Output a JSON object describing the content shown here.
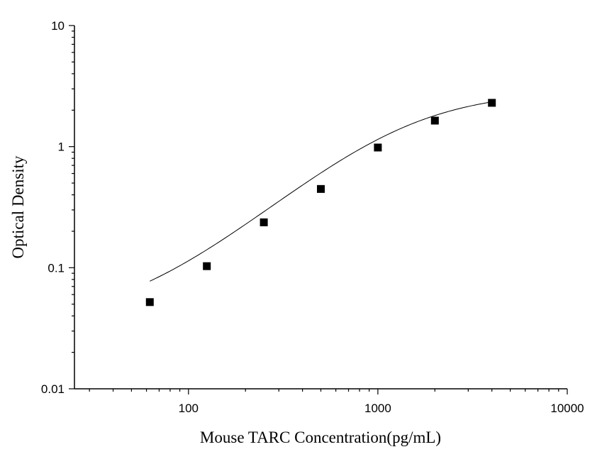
{
  "chart_data": {
    "type": "scatter",
    "title": "",
    "xlabel": "Mouse TARC Concentration(pg/mL)",
    "ylabel": "Optical Density",
    "x_scale": "log",
    "y_scale": "log",
    "xlim": [
      25,
      10000
    ],
    "ylim": [
      0.01,
      10
    ],
    "x_ticks": [
      {
        "value": 100,
        "label": "100"
      },
      {
        "value": 1000,
        "label": "1000"
      },
      {
        "value": 10000,
        "label": "10000"
      }
    ],
    "y_ticks": [
      {
        "value": 0.01,
        "label": "0.01"
      },
      {
        "value": 0.1,
        "label": "0.1"
      },
      {
        "value": 1,
        "label": "1"
      },
      {
        "value": 10,
        "label": "10"
      }
    ],
    "grid": false,
    "legend": "none",
    "marker_color": "#000000",
    "curve_color": "#000000",
    "series": [
      {
        "x": [
          62.5,
          125,
          250,
          500,
          1000,
          2000,
          4000
        ],
        "y": [
          0.052,
          0.103,
          0.237,
          0.447,
          0.983,
          1.64,
          2.3
        ]
      }
    ],
    "fit_curve": {
      "type": "4PL",
      "bottom": 0.035,
      "top": 2.9,
      "ec50": 1400,
      "slope": 1.35
    }
  }
}
